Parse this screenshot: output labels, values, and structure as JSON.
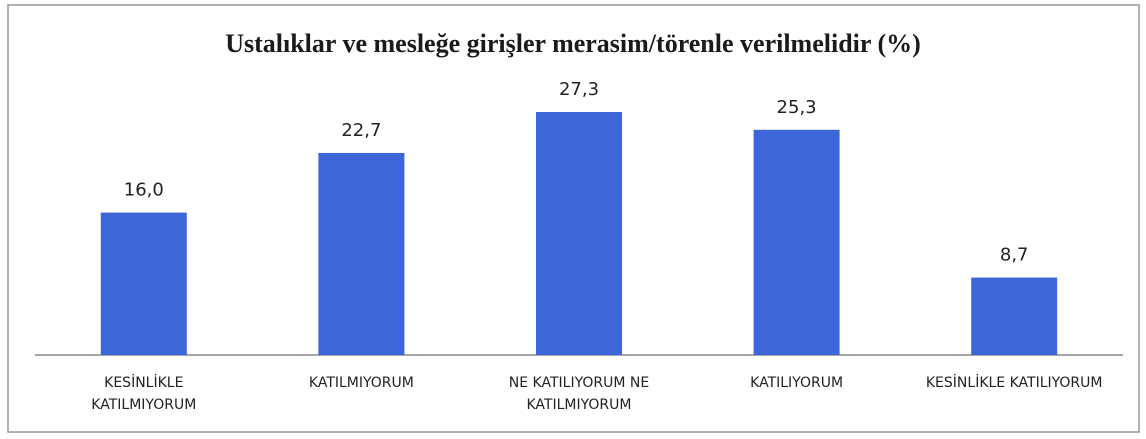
{
  "chart_data": {
    "type": "bar",
    "title": "Ustalıklar ve mesleğe girişler merasim/törenle verilmelidir (%)",
    "categories": [
      "KESİNLİKLE KATILMIYORUM",
      "KATILMIYORUM",
      "NE KATILIYORUM NE KATILMIYORUM",
      "KATILIYORUM",
      "KESİNLİKLE KATILIYORUM"
    ],
    "values": [
      16.0,
      22.7,
      27.3,
      25.3,
      8.7
    ],
    "value_labels": [
      "16,0",
      "22,7",
      "27,3",
      "25,3",
      "8,7"
    ],
    "color": "#3d66d8"
  }
}
